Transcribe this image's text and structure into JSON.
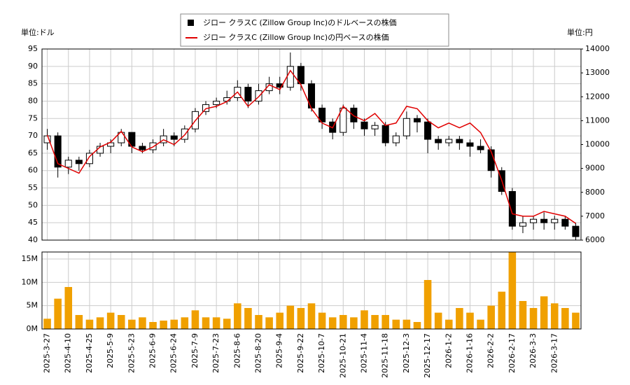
{
  "chart_data": {
    "type": "candlestick",
    "y_unit": "単位:ドル",
    "y2_unit": "単位:円",
    "candle_name": "ジロー クラスC (Zillow Group Inc)のドルベースの株価",
    "candle_color": "#000000",
    "categories": [
      "2025-3-27",
      null,
      "2025-4-10",
      null,
      "2025-4-25",
      null,
      "2025-5-9",
      null,
      "2025-5-23",
      null,
      "2025-6-9",
      null,
      "2025-6-24",
      null,
      "2025-7-9",
      null,
      "2025-7-23",
      null,
      "2025-8-6",
      null,
      "2025-8-20",
      null,
      "2025-9-4",
      null,
      "2025-9-22",
      null,
      "2025-10-7",
      null,
      "2025-10-21",
      null,
      "2025-11-4",
      null,
      "2025-11-18",
      null,
      "2025-12-3",
      null,
      "2025-12-17",
      null,
      "2026-1-2",
      null,
      "2026-1-16",
      null,
      "2026-2-2",
      null,
      "2026-2-17",
      null,
      "2026-3-3",
      null,
      "2026-3-17",
      null,
      null
    ],
    "open": [
      68,
      70,
      61,
      63,
      62,
      65,
      67,
      68,
      71,
      67,
      66,
      68,
      70,
      69,
      72,
      77,
      79,
      80,
      81,
      84,
      80,
      83,
      85,
      84,
      90,
      85,
      78,
      74,
      71,
      78,
      74,
      72,
      73,
      68,
      70,
      75,
      74,
      69,
      68,
      69,
      68,
      67,
      66,
      60,
      54,
      44,
      45,
      46,
      45,
      46,
      44
    ],
    "high": [
      72,
      71,
      64,
      64,
      66,
      68,
      69,
      72,
      71,
      68,
      69,
      72,
      71,
      73,
      78,
      80,
      81,
      83,
      86,
      85,
      85,
      87,
      87,
      94,
      91,
      86,
      79,
      75,
      79,
      79,
      75,
      74,
      74,
      71,
      77,
      76,
      75,
      70,
      70,
      70,
      69,
      69,
      67,
      61,
      55,
      47,
      47,
      48,
      47,
      47,
      45
    ],
    "low": [
      66,
      58,
      59,
      60,
      61,
      64,
      65,
      67,
      65,
      65,
      65,
      67,
      67,
      68,
      71,
      76,
      78,
      79,
      80,
      78,
      79,
      82,
      82,
      83,
      83,
      77,
      72,
      69,
      70,
      72,
      70,
      70,
      67,
      67,
      69,
      71,
      65,
      66,
      67,
      66,
      64,
      65,
      58,
      53,
      43,
      42,
      43,
      43,
      43,
      43,
      40
    ],
    "close": [
      70,
      61,
      63,
      62,
      65,
      67,
      68,
      71,
      67,
      66,
      68,
      70,
      69,
      72,
      77,
      79,
      80,
      81,
      84,
      80,
      83,
      85,
      84,
      90,
      85,
      78,
      74,
      71,
      78,
      74,
      72,
      73,
      68,
      70,
      75,
      74,
      69,
      68,
      69,
      68,
      67,
      66,
      60,
      54,
      44,
      45,
      46,
      45,
      46,
      44,
      41
    ],
    "series": [
      {
        "name": "ジロー クラスC (Zillow Group Inc)の円ベースの株価",
        "color": "#e00000",
        "axis": "y2",
        "values": [
          10400,
          9200,
          9000,
          8800,
          9500,
          9900,
          10100,
          10550,
          9900,
          9700,
          9900,
          10200,
          10000,
          10400,
          11000,
          11500,
          11600,
          11800,
          12200,
          11600,
          12000,
          12500,
          12300,
          13100,
          12500,
          11500,
          10900,
          10700,
          11600,
          11200,
          11000,
          11300,
          10800,
          10900,
          11600,
          11500,
          11000,
          10700,
          10900,
          10700,
          10900,
          10500,
          9700,
          8500,
          7100,
          7000,
          7000,
          7200,
          7100,
          7000,
          6700
        ]
      }
    ],
    "ylim": [
      40,
      95
    ],
    "yticks": [
      40,
      45,
      50,
      55,
      60,
      65,
      70,
      75,
      80,
      85,
      90,
      95
    ],
    "y2lim": [
      6000,
      14000
    ],
    "y2ticks": [
      6000,
      7000,
      8000,
      9000,
      10000,
      11000,
      12000,
      13000,
      14000
    ],
    "volume": {
      "type": "bar",
      "color": "#f0a000",
      "values": [
        2200000,
        6500000,
        9000000,
        3000000,
        2000000,
        2500000,
        3500000,
        3000000,
        2000000,
        2500000,
        1500000,
        1800000,
        2000000,
        2500000,
        4000000,
        2500000,
        2500000,
        2200000,
        5500000,
        4500000,
        3000000,
        2500000,
        3500000,
        5000000,
        4500000,
        5500000,
        3500000,
        2500000,
        3000000,
        2500000,
        4000000,
        3000000,
        3000000,
        2000000,
        2000000,
        1500000,
        10500000,
        3500000,
        2000000,
        4500000,
        3500000,
        2000000,
        5000000,
        8000000,
        16500000,
        6000000,
        4500000,
        7000000,
        5500000,
        4500000,
        3500000
      ],
      "ylim": [
        0,
        16500000
      ],
      "yticks": [
        {
          "value": 0,
          "label": "0M"
        },
        {
          "value": 5000000,
          "label": "5M"
        },
        {
          "value": 10000000,
          "label": "10M"
        },
        {
          "value": 15000000,
          "label": "15M"
        }
      ]
    },
    "grid": true,
    "legend_position": "top"
  }
}
